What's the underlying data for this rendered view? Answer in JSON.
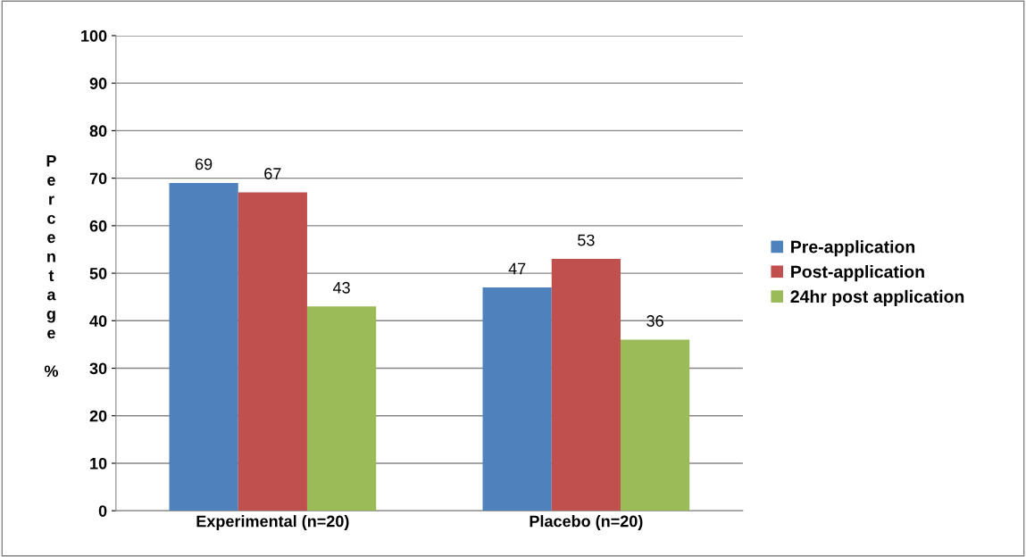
{
  "chart_data": {
    "type": "bar",
    "ylabel": "Percentage %",
    "categories": [
      "Experimental (n=20)",
      "Placebo (n=20)"
    ],
    "series": [
      {
        "name": "Pre-application",
        "color": "#4f81bd",
        "values": [
          69,
          47
        ]
      },
      {
        "name": "Post-application",
        "color": "#c0504d",
        "values": [
          67,
          53
        ]
      },
      {
        "name": "24hr post application",
        "color": "#9bbb59",
        "values": [
          43,
          36
        ]
      }
    ],
    "ylim": [
      0,
      100
    ],
    "yticks": [
      0,
      10,
      20,
      30,
      40,
      50,
      60,
      70,
      80,
      90,
      100
    ],
    "grid": "y",
    "legend": "right",
    "data_labels": true
  }
}
